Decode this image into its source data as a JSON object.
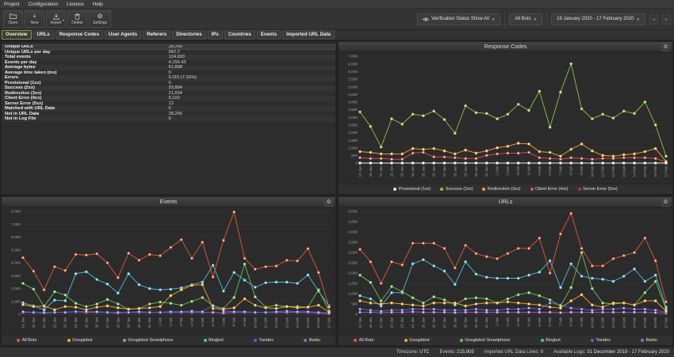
{
  "menu": {
    "items": [
      "Project",
      "Configuration",
      "Licence",
      "Help"
    ]
  },
  "toolbar": {
    "buttons": [
      {
        "label": "Open"
      },
      {
        "label": "New"
      },
      {
        "label": "Import"
      },
      {
        "label": "Delete"
      },
      {
        "label": "Settings"
      }
    ],
    "verification_status": "Verification Status Show All",
    "bots_filter": "All Bots",
    "date_range": "19 January 2020 - 17 February 2020"
  },
  "tabs": {
    "active": "Overview",
    "items": [
      "Overview",
      "URLs",
      "Response Codes",
      "User Agents",
      "Referers",
      "Directories",
      "IPs",
      "Countries",
      "Events",
      "Imported URL Data"
    ]
  },
  "overview_table": {
    "rows": [
      {
        "label": "Unique URLs",
        "value": "28,266"
      },
      {
        "label": "Unique URLs per day",
        "value": "942.2"
      },
      {
        "label": "Total events",
        "value": "124,693"
      },
      {
        "label": "Events per day",
        "value": "4,156.43"
      },
      {
        "label": "Average bytes",
        "value": "61,898"
      },
      {
        "label": "Average time taken (ms)",
        "value": "0"
      },
      {
        "label": "Errors",
        "value": "9,115 (7.31%)"
      },
      {
        "label": "Provisional (1xx)",
        "value": "0"
      },
      {
        "label": "Success (2xx)",
        "value": "93,884"
      },
      {
        "label": "Redirection (3xx)",
        "value": "21,694"
      },
      {
        "label": "Client Error (4xx)",
        "value": "9,102"
      },
      {
        "label": "Server Error (5xx)",
        "value": "13"
      },
      {
        "label": "Matched with URL Data",
        "value": "0"
      },
      {
        "label": "Not in URL Data",
        "value": "28,266"
      },
      {
        "label": "Not in Log File",
        "value": "0"
      }
    ]
  },
  "chart_data": [
    {
      "type": "line",
      "title": "Response Codes",
      "ylim": [
        0,
        7000
      ],
      "ytick": 500,
      "legend_position": "bottom",
      "x_labels": [
        "19 Jan",
        "20 Jan",
        "21 Jan",
        "22 Jan",
        "23 Jan",
        "24 Jan",
        "25 Jan",
        "26 Jan",
        "27 Jan",
        "28 Jan",
        "29 Jan",
        "30 Jan",
        "31 Jan",
        "1 Feb",
        "2 Feb",
        "3 Feb",
        "4 Feb",
        "5 Feb",
        "6 Feb",
        "7 Feb",
        "8 Feb",
        "9 Feb",
        "10 Feb",
        "11 Feb",
        "12 Feb",
        "13 Feb",
        "14 Feb",
        "15 Feb",
        "16 Feb",
        "17 Feb"
      ],
      "series": [
        {
          "name": "Provisional (1xx)",
          "color": "#e8e8e8",
          "values": [
            0,
            0,
            0,
            0,
            0,
            0,
            0,
            0,
            0,
            0,
            0,
            0,
            0,
            0,
            0,
            0,
            0,
            0,
            0,
            0,
            0,
            0,
            0,
            0,
            0,
            0,
            0,
            0,
            0,
            0
          ]
        },
        {
          "name": "Success (2xx)",
          "color": "#8fc14d",
          "values": [
            3350,
            2400,
            1050,
            2900,
            2550,
            3200,
            3100,
            3400,
            2850,
            1950,
            3750,
            3300,
            3250,
            2900,
            3200,
            3850,
            3450,
            4700,
            2350,
            4650,
            6500,
            3550,
            2900,
            3200,
            2950,
            3400,
            3250,
            4000,
            2500,
            450
          ]
        },
        {
          "name": "Redirection (3xx)",
          "color": "#efa836",
          "values": [
            750,
            700,
            600,
            600,
            600,
            950,
            900,
            950,
            800,
            600,
            850,
            650,
            800,
            1000,
            1100,
            1300,
            1250,
            750,
            700,
            450,
            900,
            1250,
            800,
            500,
            450,
            550,
            600,
            750,
            950,
            100
          ]
        },
        {
          "name": "Client Error (4xx)",
          "color": "#d9534f",
          "values": [
            350,
            300,
            300,
            250,
            250,
            650,
            700,
            400,
            400,
            350,
            300,
            300,
            500,
            600,
            650,
            650,
            700,
            350,
            300,
            250,
            350,
            300,
            250,
            300,
            300,
            350,
            350,
            350,
            300,
            80
          ]
        },
        {
          "name": "Server Error (5xx)",
          "color": "#b03a2e",
          "values": [
            0,
            0,
            0,
            0,
            0,
            0,
            0,
            0,
            0,
            0,
            0,
            0,
            0,
            0,
            0,
            0,
            0,
            0,
            0,
            0,
            0,
            0,
            0,
            0,
            0,
            0,
            0,
            0,
            0,
            0
          ]
        }
      ]
    },
    {
      "type": "line",
      "title": "Events",
      "ylim": [
        0,
        8000
      ],
      "ytick": 1000,
      "legend_position": "bottom",
      "x_labels": [
        "19 Jan",
        "20 Jan",
        "21 Jan",
        "22 Jan",
        "23 Jan",
        "24 Jan",
        "25 Jan",
        "26 Jan",
        "27 Jan",
        "28 Jan",
        "29 Jan",
        "30 Jan",
        "31 Jan",
        "1 Feb",
        "2 Feb",
        "3 Feb",
        "4 Feb",
        "5 Feb",
        "6 Feb",
        "7 Feb",
        "8 Feb",
        "9 Feb",
        "10 Feb",
        "11 Feb",
        "12 Feb",
        "13 Feb",
        "14 Feb",
        "15 Feb",
        "16 Feb",
        "17 Feb"
      ],
      "series": [
        {
          "name": "All Bots",
          "color": "#e05a3a",
          "values": [
            4400,
            3350,
            1900,
            3700,
            3400,
            4650,
            4600,
            4700,
            4000,
            2850,
            4750,
            4200,
            4650,
            4550,
            5200,
            5800,
            4350,
            5600,
            2900,
            5750,
            7950,
            4350,
            3500,
            3700,
            3750,
            4200,
            4150,
            5100,
            3250,
            550
          ]
        },
        {
          "name": "Googlebot",
          "color": "#efa836",
          "values": [
            750,
            600,
            650,
            350,
            600,
            550,
            350,
            550,
            650,
            500,
            400,
            450,
            500,
            600,
            1450,
            1900,
            2250,
            2300,
            450,
            400,
            500,
            1200,
            700,
            500,
            450,
            600,
            500,
            550,
            700,
            150
          ]
        },
        {
          "name": "Googlebot Smartphone",
          "color": "#6cbf5a",
          "values": [
            2400,
            1950,
            600,
            1750,
            1500,
            850,
            600,
            800,
            1150,
            800,
            400,
            450,
            800,
            950,
            850,
            700,
            1000,
            1300,
            650,
            450,
            1300,
            3900,
            1350,
            550,
            700,
            600,
            600,
            550,
            1900,
            250
          ]
        },
        {
          "name": "Bingbot",
          "color": "#55bcd4",
          "values": [
            900,
            650,
            350,
            1100,
            1050,
            3150,
            3300,
            2700,
            2350,
            1650,
            3150,
            2300,
            2000,
            1900,
            1950,
            2050,
            2300,
            2500,
            3800,
            1800,
            3250,
            2650,
            2100,
            2450,
            2500,
            2500,
            2400,
            3050,
            1800,
            650
          ]
        },
        {
          "name": "Yandex",
          "color": "#5863d8",
          "values": [
            200,
            150,
            150,
            150,
            150,
            200,
            200,
            200,
            150,
            150,
            150,
            200,
            150,
            150,
            200,
            200,
            250,
            200,
            700,
            250,
            200,
            200,
            150,
            150,
            200,
            250,
            200,
            200,
            150,
            100
          ]
        },
        {
          "name": "Baidu",
          "color": "#a65cc4",
          "values": [
            150,
            150,
            100,
            150,
            150,
            200,
            150,
            150,
            150,
            100,
            150,
            150,
            150,
            150,
            150,
            150,
            150,
            150,
            150,
            100,
            150,
            150,
            150,
            150,
            150,
            150,
            150,
            150,
            100,
            50
          ]
        }
      ]
    },
    {
      "type": "line",
      "title": "URLs",
      "ylim": [
        0,
        5000
      ],
      "ytick": 500,
      "legend_position": "bottom",
      "x_labels": [
        "19 Jan",
        "20 Jan",
        "21 Jan",
        "22 Jan",
        "23 Jan",
        "24 Jan",
        "25 Jan",
        "26 Jan",
        "27 Jan",
        "28 Jan",
        "29 Jan",
        "30 Jan",
        "31 Jan",
        "1 Feb",
        "2 Feb",
        "3 Feb",
        "4 Feb",
        "5 Feb",
        "6 Feb",
        "7 Feb",
        "8 Feb",
        "9 Feb",
        "10 Feb",
        "11 Feb",
        "12 Feb",
        "13 Feb",
        "14 Feb",
        "15 Feb",
        "16 Feb",
        "17 Feb"
      ],
      "series": [
        {
          "name": "All Bots",
          "color": "#e05a3a",
          "values": [
            3150,
            2550,
            1500,
            2550,
            2400,
            3450,
            3450,
            3450,
            3200,
            2250,
            3350,
            2950,
            2800,
            2700,
            2950,
            3200,
            3200,
            3700,
            2000,
            3900,
            4900,
            3200,
            2350,
            2350,
            2700,
            2850,
            3000,
            3700,
            2600,
            600
          ]
        },
        {
          "name": "Googlebot",
          "color": "#efa836",
          "values": [
            650,
            550,
            500,
            550,
            500,
            450,
            400,
            550,
            550,
            550,
            400,
            500,
            550,
            550,
            600,
            550,
            500,
            450,
            350,
            300,
            650,
            950,
            450,
            350,
            550,
            550,
            450,
            650,
            650,
            150
          ]
        },
        {
          "name": "Googlebot Smartphone",
          "color": "#6cbf5a",
          "values": [
            1900,
            1550,
            650,
            1350,
            1100,
            800,
            550,
            850,
            700,
            450,
            750,
            800,
            750,
            550,
            750,
            950,
            1050,
            900,
            700,
            400,
            1300,
            3000,
            1250,
            550,
            500,
            550,
            450,
            1050,
            1600,
            250
          ]
        },
        {
          "name": "Bingbot",
          "color": "#55bcd4",
          "values": [
            900,
            750,
            400,
            1050,
            1050,
            2450,
            2650,
            2350,
            2100,
            1450,
            2550,
            1950,
            1800,
            1750,
            1750,
            1750,
            1900,
            2050,
            2600,
            1300,
            2450,
            1850,
            1750,
            1700,
            1600,
            1850,
            2200,
            1600,
            1900,
            350
          ]
        },
        {
          "name": "Yandex",
          "color": "#5863d8",
          "values": [
            250,
            200,
            150,
            200,
            200,
            250,
            250,
            250,
            200,
            200,
            200,
            250,
            200,
            200,
            250,
            250,
            300,
            250,
            550,
            450,
            300,
            250,
            200,
            250,
            250,
            300,
            250,
            250,
            200,
            100
          ]
        },
        {
          "name": "Baidu",
          "color": "#a65cc4",
          "values": [
            100,
            100,
            80,
            100,
            100,
            120,
            100,
            100,
            100,
            80,
            100,
            100,
            100,
            100,
            100,
            100,
            100,
            100,
            100,
            80,
            100,
            100,
            100,
            100,
            100,
            100,
            100,
            100,
            80,
            50
          ]
        }
      ]
    }
  ],
  "status_bar": {
    "items": [
      {
        "label": "Timezone:",
        "value": "UTC"
      },
      {
        "label": "Events:",
        "value": "215,905"
      },
      {
        "label": "Imported URL Data Lines:",
        "value": "0"
      },
      {
        "label": "Available Logs:",
        "value": "31 December 2019 - 17 February 2020"
      }
    ]
  }
}
